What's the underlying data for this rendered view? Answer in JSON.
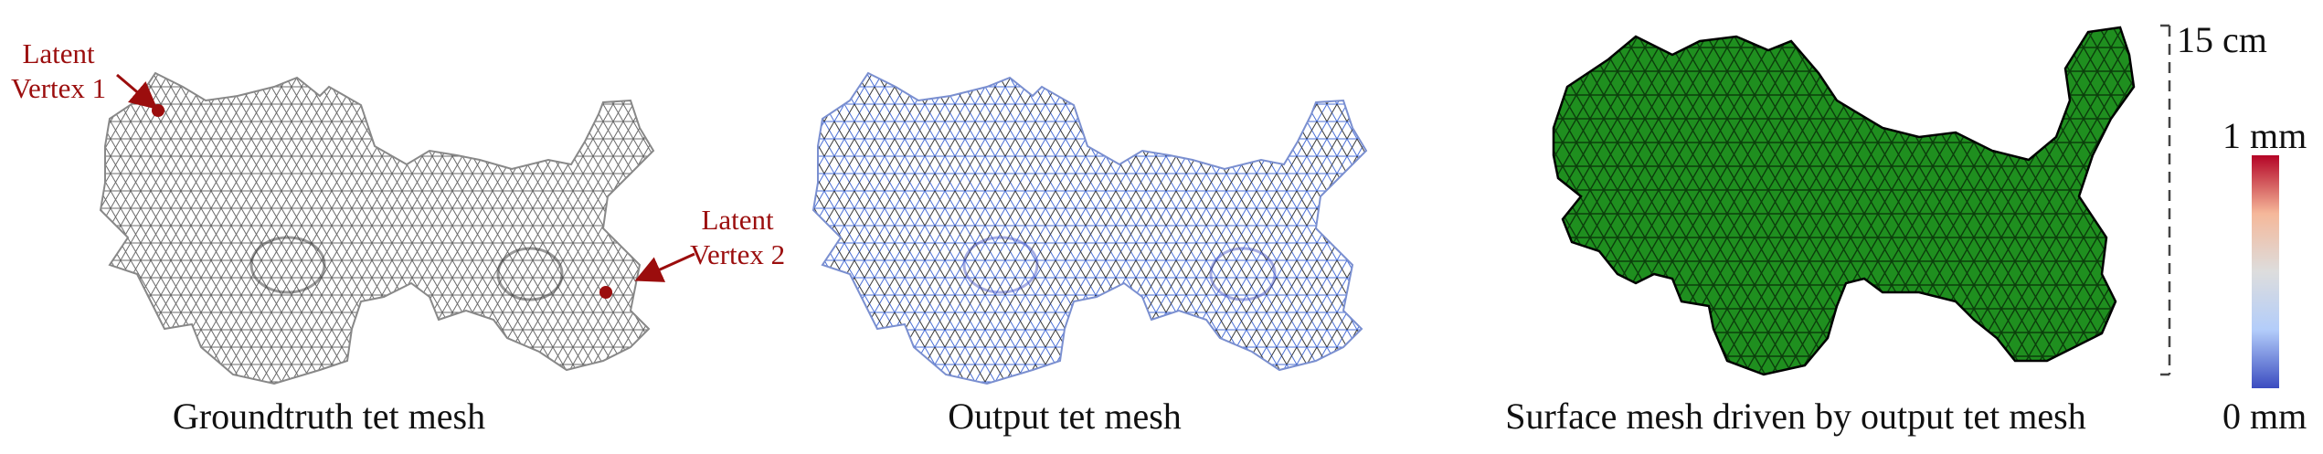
{
  "panels": {
    "groundtruth": {
      "caption": "Groundtruth tet mesh"
    },
    "output": {
      "caption": "Output tet mesh"
    },
    "surface": {
      "caption": "Surface mesh driven by output tet mesh"
    }
  },
  "annotations": {
    "latent_vertex_1": {
      "line1": "Latent",
      "line2": "Vertex 1"
    },
    "latent_vertex_2": {
      "line1": "Latent",
      "line2": "Vertex 2"
    }
  },
  "scale_bar": {
    "label": "15 cm"
  },
  "colorbar": {
    "max_label": "1 mm",
    "min_label": "0 mm",
    "colormap": "coolwarm",
    "colors": [
      "#3b4cc0",
      "#b3cdfa",
      "#dddddd",
      "#f5b89a",
      "#b40426"
    ]
  },
  "colors": {
    "annotation": "#9b0d0d",
    "gt_wire": "#555555",
    "output_wire": "#4a6fd6",
    "surface_fill": "#1f8f1f",
    "surface_wire": "#000000"
  }
}
